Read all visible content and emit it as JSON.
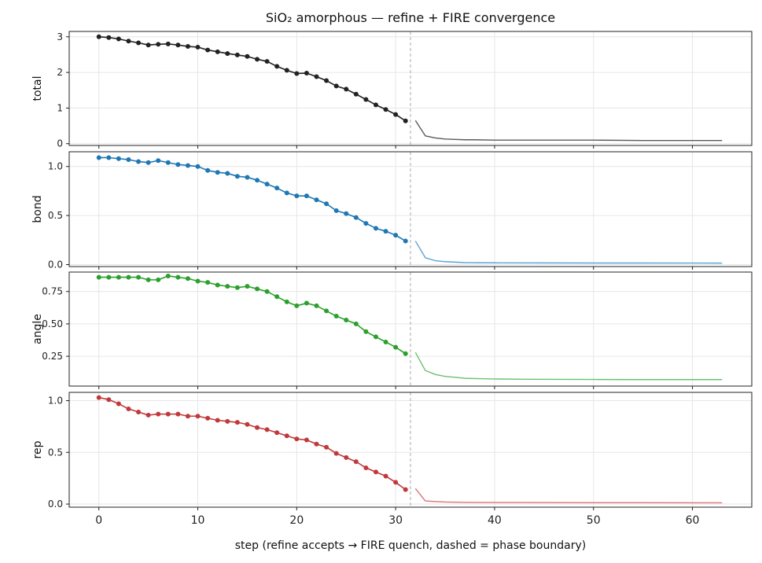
{
  "chart_data": {
    "type": "line",
    "title": "SiO₂ amorphous — refine + FIRE convergence",
    "xlabel": "step  (refine accepts → FIRE quench, dashed = phase boundary)",
    "xlim": [
      -3,
      66
    ],
    "x_ticks": [
      0,
      10,
      20,
      30,
      40,
      50,
      60
    ],
    "phase_boundary_x": 31.5,
    "grid": true,
    "panels": [
      {
        "name": "total",
        "ylabel": "total",
        "color": "#222222",
        "fire_color": "#5a5a5a",
        "ylim": [
          -0.05,
          3.15
        ],
        "y_ticks": [
          0,
          1,
          2,
          3
        ],
        "y_tick_labels": [
          "0",
          "1",
          "2",
          "3"
        ],
        "refine": [
          3.0,
          2.98,
          2.94,
          2.88,
          2.83,
          2.77,
          2.79,
          2.8,
          2.77,
          2.73,
          2.71,
          2.63,
          2.58,
          2.53,
          2.49,
          2.45,
          2.37,
          2.31,
          2.17,
          2.06,
          1.97,
          1.98,
          1.88,
          1.77,
          1.62,
          1.53,
          1.39,
          1.24,
          1.09,
          0.96,
          0.82,
          0.64
        ],
        "fire_x": [
          32,
          33,
          34,
          35,
          36,
          37,
          38,
          40,
          43,
          46,
          50,
          55,
          60,
          63
        ],
        "fire": [
          0.65,
          0.22,
          0.16,
          0.13,
          0.12,
          0.11,
          0.11,
          0.1,
          0.1,
          0.1,
          0.1,
          0.09,
          0.09,
          0.09
        ]
      },
      {
        "name": "bond",
        "ylabel": "bond",
        "color": "#1f77b4",
        "fire_color": "#5ba3d4",
        "ylim": [
          -0.02,
          1.15
        ],
        "y_ticks": [
          0,
          0.5,
          1.0
        ],
        "y_tick_labels": [
          "0.0",
          "0.5",
          "1.0"
        ],
        "refine": [
          1.09,
          1.09,
          1.08,
          1.07,
          1.05,
          1.04,
          1.06,
          1.04,
          1.02,
          1.01,
          1.0,
          0.96,
          0.94,
          0.93,
          0.9,
          0.89,
          0.86,
          0.82,
          0.78,
          0.73,
          0.7,
          0.7,
          0.66,
          0.62,
          0.55,
          0.52,
          0.48,
          0.42,
          0.37,
          0.34,
          0.3,
          0.24
        ],
        "fire_x": [
          32,
          33,
          34,
          35,
          36,
          37,
          40,
          45,
          50,
          55,
          63
        ],
        "fire": [
          0.24,
          0.07,
          0.04,
          0.03,
          0.025,
          0.02,
          0.018,
          0.017,
          0.016,
          0.016,
          0.015
        ]
      },
      {
        "name": "angle",
        "ylabel": "angle",
        "color": "#2ca02c",
        "fire_color": "#6cc06c",
        "ylim": [
          0.02,
          0.9
        ],
        "y_ticks": [
          0.25,
          0.5,
          0.75
        ],
        "y_tick_labels": [
          "0.25",
          "0.50",
          "0.75"
        ],
        "refine": [
          0.86,
          0.86,
          0.86,
          0.86,
          0.86,
          0.84,
          0.84,
          0.87,
          0.86,
          0.85,
          0.83,
          0.82,
          0.8,
          0.79,
          0.78,
          0.79,
          0.77,
          0.75,
          0.71,
          0.67,
          0.64,
          0.66,
          0.64,
          0.6,
          0.56,
          0.53,
          0.5,
          0.44,
          0.4,
          0.36,
          0.32,
          0.27
        ],
        "fire_x": [
          32,
          33,
          34,
          35,
          36,
          37,
          38,
          40,
          43,
          46,
          50,
          55,
          60,
          63
        ],
        "fire": [
          0.28,
          0.14,
          0.11,
          0.095,
          0.088,
          0.08,
          0.078,
          0.075,
          0.073,
          0.072,
          0.071,
          0.07,
          0.07,
          0.07
        ]
      },
      {
        "name": "rep",
        "ylabel": "rep",
        "color": "#c0393b",
        "fire_color": "#d97377",
        "ylim": [
          -0.03,
          1.08
        ],
        "y_ticks": [
          0,
          0.5,
          1.0
        ],
        "y_tick_labels": [
          "0.0",
          "0.5",
          "1.0"
        ],
        "refine": [
          1.03,
          1.01,
          0.97,
          0.92,
          0.89,
          0.86,
          0.87,
          0.87,
          0.87,
          0.85,
          0.85,
          0.83,
          0.81,
          0.8,
          0.79,
          0.77,
          0.74,
          0.72,
          0.69,
          0.66,
          0.63,
          0.62,
          0.58,
          0.55,
          0.49,
          0.45,
          0.41,
          0.35,
          0.31,
          0.27,
          0.21,
          0.14
        ],
        "fire_x": [
          32,
          33,
          34,
          35,
          36,
          37,
          40,
          45,
          50,
          55,
          63
        ],
        "fire": [
          0.15,
          0.03,
          0.025,
          0.02,
          0.018,
          0.016,
          0.015,
          0.014,
          0.013,
          0.013,
          0.012
        ]
      }
    ]
  }
}
